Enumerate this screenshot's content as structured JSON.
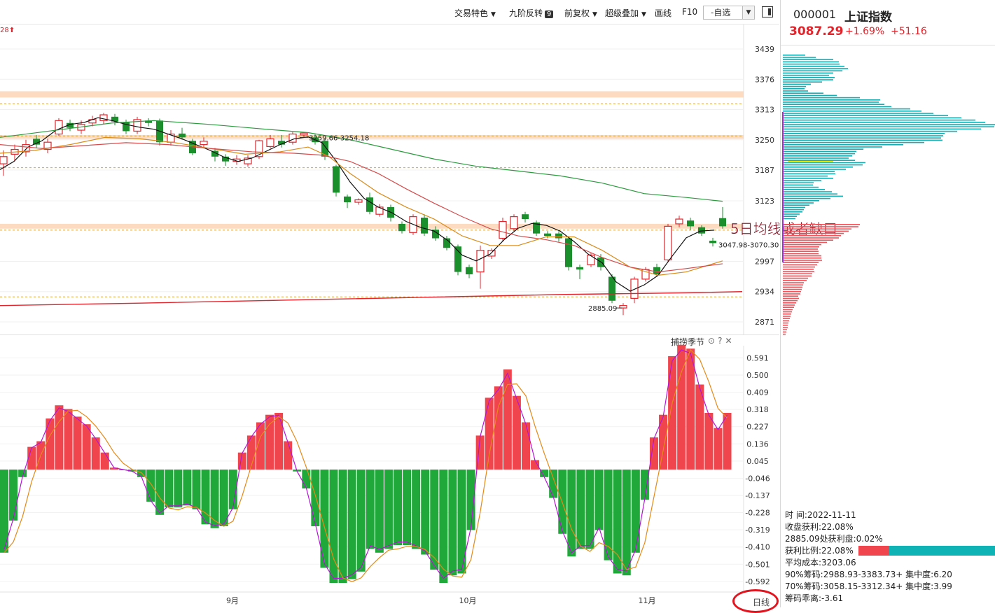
{
  "toolbar": {
    "items": [
      "交易特色",
      "九阶反转",
      "前复权",
      "超级叠加",
      "画线",
      "F10"
    ],
    "badge": "9",
    "select_value": "-自选"
  },
  "quote": {
    "code": "000001",
    "name": "上证指数",
    "price": "3087.29",
    "pct": "+1.69%",
    "change": "+51.16"
  },
  "main_chart": {
    "partial_label": "28",
    "high_label": "3259.66-3254.18",
    "mid_label": "3047.98-3070.30",
    "low_label": "2885.09",
    "annotation": "5日均线或者缺口",
    "y_ticks": [
      3439,
      3376,
      3313,
      3250,
      3187,
      3123,
      2997,
      2934,
      2871
    ],
    "x_months": [
      "9月",
      "10月",
      "11月"
    ],
    "resistance_bands": [
      [
        3338,
        3351
      ],
      [
        3252,
        3260
      ],
      [
        3065,
        3075
      ]
    ],
    "dashed_levels": [
      3325,
      3258,
      3192,
      3062,
      2923
    ],
    "colors": {
      "up": "#e0242c",
      "down": "#1a8f2c"
    }
  },
  "sub_chart": {
    "label": "捕捞季节",
    "y_ticks": [
      "0.591",
      "0.500",
      "0.409",
      "0.318",
      "0.227",
      "0.136",
      "0.045",
      "-0.046",
      "-0.137",
      "-0.228",
      "-0.319",
      "-0.410",
      "-0.501",
      "-0.592"
    ]
  },
  "chart_data": {
    "type": "bar",
    "title": "捕捞季节",
    "ylim": [
      -0.64,
      0.66
    ],
    "values": [
      -0.44,
      -0.27,
      -0.04,
      0.12,
      0.15,
      0.27,
      0.34,
      0.32,
      0.28,
      0.24,
      0.17,
      0.09,
      0.01,
      0.0,
      -0.01,
      -0.04,
      -0.17,
      -0.24,
      -0.2,
      -0.2,
      -0.19,
      -0.21,
      -0.29,
      -0.31,
      -0.3,
      -0.21,
      0.09,
      0.18,
      0.25,
      0.29,
      0.3,
      0.15,
      -0.01,
      -0.1,
      -0.3,
      -0.52,
      -0.6,
      -0.6,
      -0.58,
      -0.54,
      -0.42,
      -0.44,
      -0.42,
      -0.4,
      -0.4,
      -0.42,
      -0.45,
      -0.53,
      -0.6,
      -0.56,
      -0.55,
      -0.32,
      0.18,
      0.38,
      0.44,
      0.53,
      0.39,
      0.25,
      0.05,
      -0.04,
      -0.15,
      -0.34,
      -0.46,
      -0.42,
      -0.42,
      -0.32,
      -0.48,
      -0.55,
      -0.56,
      -0.44,
      -0.16,
      0.17,
      0.29,
      0.6,
      0.66,
      0.64,
      0.45,
      0.3,
      0.22,
      0.3
    ]
  },
  "chips": {
    "rows_cyan": [
      32,
      47,
      72,
      80,
      81,
      88,
      93,
      85,
      72,
      66,
      74,
      72,
      56,
      40,
      33,
      31,
      36,
      58,
      77,
      110,
      139,
      137,
      145,
      155,
      182,
      198,
      215,
      236,
      255,
      275,
      289,
      303,
      302,
      283,
      249,
      231,
      229,
      226,
      228,
      202,
      172,
      142,
      115,
      105,
      103,
      99,
      94,
      103,
      118,
      114,
      100,
      90,
      74,
      75,
      64,
      72,
      55,
      44,
      43,
      51,
      60,
      70,
      78,
      86,
      68,
      52,
      44,
      38,
      32,
      30,
      28,
      24,
      20,
      18
    ],
    "rows_red": [
      110,
      108,
      98,
      94,
      87,
      83,
      80,
      72,
      63,
      55,
      52,
      50,
      51,
      51,
      55,
      55,
      56,
      51,
      49,
      46,
      44,
      45,
      42,
      41,
      36,
      34,
      30,
      29,
      28,
      27,
      26,
      25,
      22,
      23,
      21,
      19,
      17,
      16,
      14,
      13,
      12,
      11,
      10,
      9,
      8,
      7,
      7,
      6,
      5,
      4
    ],
    "time_label": "时    间:2022-11-11",
    "stats": [
      "收盘获利:22.08%",
      "2885.09处获利盘:0.02%",
      "获利比例:22.08%",
      "平均成本:3203.06",
      "90%筹码:2988.93-3383.73+ 集中度:6.20",
      "70%筹码:3058.15-3312.34+ 集中度:3.99",
      "筹码乖离:-3.61"
    ]
  },
  "period": "日线"
}
